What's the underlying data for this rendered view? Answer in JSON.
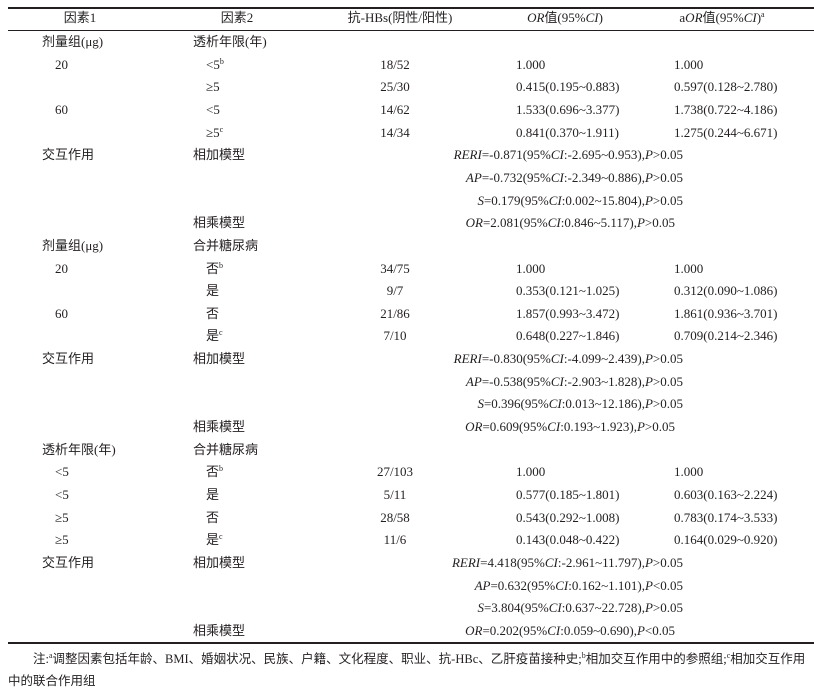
{
  "header": {
    "factor1": "因素1",
    "factor2": "因素2",
    "antihbs": "抗-HBs(阴性/阳性)",
    "or_label": "OR",
    "or_rest": "值(95%",
    "or_ci": "CI",
    "or_close": ")",
    "aor_a": "a",
    "aor_label": "OR",
    "aor_rest": "值(95%",
    "aor_ci": "CI",
    "aor_close": ")",
    "aor_sup": "a"
  },
  "groups": [
    {
      "factor1": "剂量组(μg)",
      "factor2": "透析年限(年)",
      "rows": [
        {
          "f1": "20",
          "f2": "<5",
          "sup": "b",
          "hbs": "18/52",
          "or": "1.000",
          "aor": "1.000"
        },
        {
          "f1": "",
          "f2": "≥5",
          "sup": "",
          "hbs": "25/30",
          "or": "0.415(0.195~0.883)",
          "aor": "0.597(0.128~2.780)"
        },
        {
          "f1": "60",
          "f2": "<5",
          "sup": "",
          "hbs": "14/62",
          "or": "1.533(0.696~3.377)",
          "aor": "1.738(0.722~4.186)"
        },
        {
          "f1": "",
          "f2": "≥5",
          "sup": "c",
          "hbs": "14/34",
          "or": "0.841(0.370~1.911)",
          "aor": "1.275(0.244~6.671)"
        }
      ],
      "interaction_label": "交互作用",
      "additive_label": "相加模型",
      "multiplicative_label": "相乘模型",
      "additive": [
        "RERI=-0.871(95%CI:-2.695~0.953),P>0.05",
        "AP=-0.732(95%CI:-2.349~0.886),P>0.05",
        "S=0.179(95%CI:0.002~15.804),P>0.05"
      ],
      "multiplicative": "OR=2.081(95%CI:0.846~5.117),P>0.05"
    },
    {
      "factor1": "剂量组(μg)",
      "factor2": "合并糖尿病",
      "rows": [
        {
          "f1": "20",
          "f2": "否",
          "sup": "b",
          "hbs": "34/75",
          "or": "1.000",
          "aor": "1.000"
        },
        {
          "f1": "",
          "f2": "是",
          "sup": "",
          "hbs": "9/7",
          "or": "0.353(0.121~1.025)",
          "aor": "0.312(0.090~1.086)"
        },
        {
          "f1": "60",
          "f2": "否",
          "sup": "",
          "hbs": "21/86",
          "or": "1.857(0.993~3.472)",
          "aor": "1.861(0.936~3.701)"
        },
        {
          "f1": "",
          "f2": "是",
          "sup": "c",
          "hbs": "7/10",
          "or": "0.648(0.227~1.846)",
          "aor": "0.709(0.214~2.346)"
        }
      ],
      "interaction_label": "交互作用",
      "additive_label": "相加模型",
      "multiplicative_label": "相乘模型",
      "additive": [
        "RERI=-0.830(95%CI:-4.099~2.439),P>0.05",
        "AP=-0.538(95%CI:-2.903~1.828),P>0.05",
        "S=0.396(95%CI:0.013~12.186),P>0.05"
      ],
      "multiplicative": "OR=0.609(95%CI:0.193~1.923),P>0.05"
    },
    {
      "factor1": "透析年限(年)",
      "factor2": "合并糖尿病",
      "rows": [
        {
          "f1": "<5",
          "f2": "否",
          "sup": "b",
          "hbs": "27/103",
          "or": "1.000",
          "aor": "1.000"
        },
        {
          "f1": "<5",
          "f2": "是",
          "sup": "",
          "hbs": "5/11",
          "or": "0.577(0.185~1.801)",
          "aor": "0.603(0.163~2.224)"
        },
        {
          "f1": "≥5",
          "f2": "否",
          "sup": "",
          "hbs": "28/58",
          "or": "0.543(0.292~1.008)",
          "aor": "0.783(0.174~3.533)"
        },
        {
          "f1": "≥5",
          "f2": "是",
          "sup": "c",
          "hbs": "11/6",
          "or": "0.143(0.048~0.422)",
          "aor": "0.164(0.029~0.920)"
        }
      ],
      "interaction_label": "交互作用",
      "additive_label": "相加模型",
      "multiplicative_label": "相乘模型",
      "additive": [
        "RERI=4.418(95%CI:-2.961~11.797),P>0.05",
        "AP=0.632(95%CI:0.162~1.101),P<0.05",
        "S=3.804(95%CI:0.637~22.728),P>0.05"
      ],
      "multiplicative": "OR=0.202(95%CI:0.059~0.690),P<0.05"
    }
  ],
  "note": {
    "prefix": "注:",
    "a_sup": "a",
    "a_text": "调整因素包括年龄、BMI、婚姻状况、民族、户籍、文化程度、职业、抗-HBc、乙肝疫苗接种史;",
    "b_sup": "b",
    "b_text": "相加交互作用中的参照组;",
    "c_sup": "c",
    "c_text": "相加交互作用中的联合作用组"
  }
}
